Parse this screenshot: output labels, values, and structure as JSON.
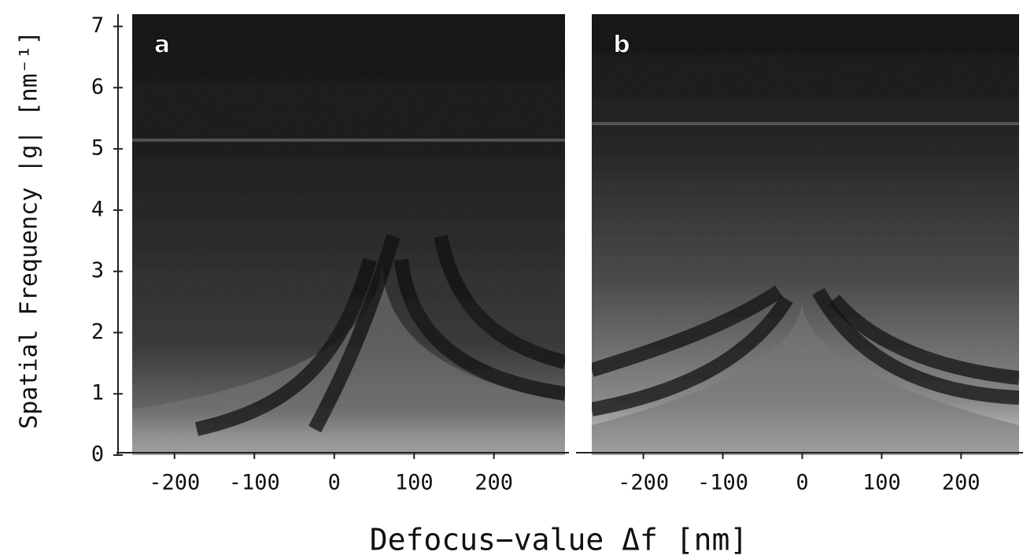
{
  "figure": {
    "xlabel": "Defocus−value  Δf [nm]",
    "ylabel": "Spatial Frequency |g| [nm⁻¹]"
  },
  "chart_data": [
    {
      "type": "image",
      "panel_label": "a",
      "xlim": [
        -253,
        289
      ],
      "xticks": [
        -200,
        -100,
        0,
        100,
        200
      ],
      "ylim": [
        0,
        7.2
      ],
      "yticks": [
        0,
        1,
        2,
        3,
        4,
        5,
        6,
        7
      ]
    },
    {
      "type": "image",
      "panel_label": "b",
      "xlim": [
        -265,
        273
      ],
      "xticks": [
        -200,
        -100,
        0,
        100,
        200
      ],
      "ylim": [
        0,
        7.2
      ]
    }
  ]
}
